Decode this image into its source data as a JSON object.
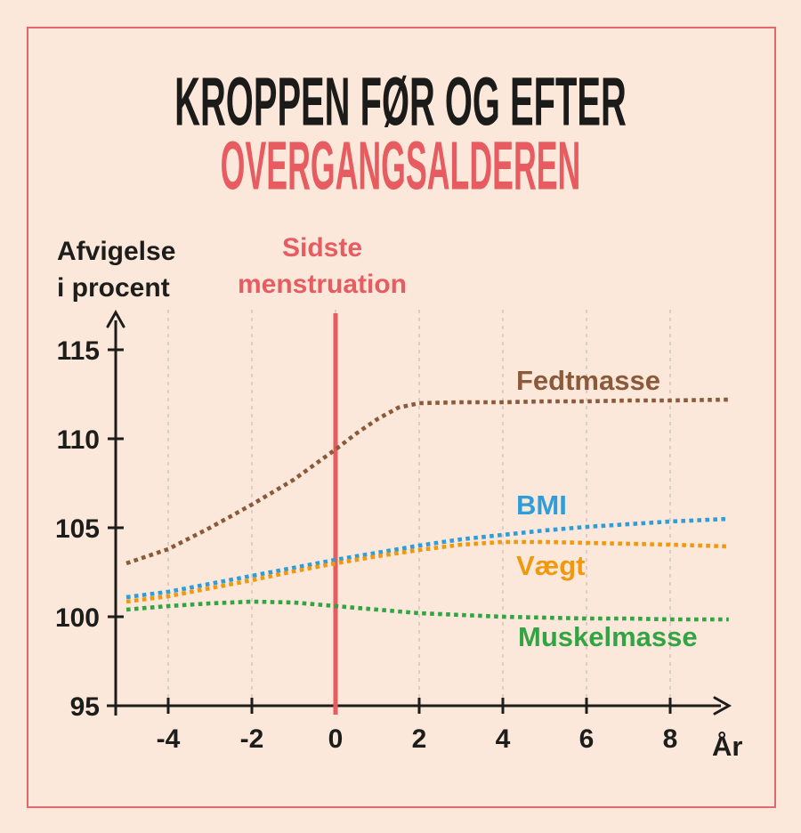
{
  "colors": {
    "background": "#fce8da",
    "frame_border": "#e0686e",
    "accent_red": "#e75c60",
    "text_black": "#1d1d1b",
    "gridline": "#d8cec5",
    "axis": "#1d1d1b"
  },
  "chart_data": {
    "type": "line",
    "title_lines": [
      "KROPPEN FØR OG EFTER",
      "OVERGANGSALDEREN"
    ],
    "ylabel_lines": [
      "Afvigelse",
      "i procent"
    ],
    "xlabel": "År",
    "event_line": {
      "x": 0,
      "label_lines": [
        "Sidste",
        "menstruation"
      ],
      "color": "#e75c60"
    },
    "x_ticks": [
      -4,
      -2,
      0,
      2,
      4,
      6,
      8
    ],
    "y_ticks": [
      95,
      100,
      105,
      110,
      115
    ],
    "x_range": [
      -5,
      9.4
    ],
    "y_range": [
      95,
      117
    ],
    "grid": "vertical-dashed",
    "line_style": "dotted",
    "legend_position": "inline-labels",
    "series": [
      {
        "name": "Fedtmasse",
        "color": "#8a5a3a",
        "points": [
          [
            -5,
            103.0
          ],
          [
            -4,
            103.8
          ],
          [
            -3,
            105.0
          ],
          [
            -2,
            106.3
          ],
          [
            -1,
            107.7
          ],
          [
            0,
            109.4
          ],
          [
            0.5,
            110.3
          ],
          [
            1,
            111.1
          ],
          [
            1.5,
            111.75
          ],
          [
            2,
            112.0
          ],
          [
            3,
            112.05
          ],
          [
            4,
            112.05
          ],
          [
            5,
            112.1
          ],
          [
            6,
            112.1
          ],
          [
            7,
            112.15
          ],
          [
            8,
            112.15
          ],
          [
            9.4,
            112.2
          ]
        ]
      },
      {
        "name": "BMI",
        "color": "#2f9ed8",
        "points": [
          [
            -5,
            101.1
          ],
          [
            -4,
            101.4
          ],
          [
            -3,
            101.85
          ],
          [
            -2,
            102.3
          ],
          [
            -1,
            102.75
          ],
          [
            0,
            103.2
          ],
          [
            1,
            103.6
          ],
          [
            2,
            104.0
          ],
          [
            3,
            104.35
          ],
          [
            4,
            104.6
          ],
          [
            5,
            104.85
          ],
          [
            6,
            105.05
          ],
          [
            7,
            105.2
          ],
          [
            8,
            105.35
          ],
          [
            9.4,
            105.5
          ]
        ]
      },
      {
        "name": "Vægt",
        "color": "#f0990f",
        "points": [
          [
            -5,
            100.85
          ],
          [
            -4,
            101.15
          ],
          [
            -3,
            101.6
          ],
          [
            -2,
            102.05
          ],
          [
            -1,
            102.55
          ],
          [
            0,
            103.0
          ],
          [
            1,
            103.4
          ],
          [
            2,
            103.75
          ],
          [
            3,
            104.05
          ],
          [
            4,
            104.2
          ],
          [
            5,
            104.2
          ],
          [
            6,
            104.15
          ],
          [
            7,
            104.1
          ],
          [
            8,
            104.05
          ],
          [
            9.4,
            103.95
          ]
        ]
      },
      {
        "name": "Muskelmasse",
        "color": "#33a443",
        "points": [
          [
            -5,
            100.4
          ],
          [
            -4,
            100.6
          ],
          [
            -3,
            100.75
          ],
          [
            -2,
            100.85
          ],
          [
            -1,
            100.8
          ],
          [
            0,
            100.6
          ],
          [
            1,
            100.4
          ],
          [
            2,
            100.2
          ],
          [
            3,
            100.1
          ],
          [
            4,
            100.0
          ],
          [
            5,
            99.95
          ],
          [
            6,
            99.9
          ],
          [
            7,
            99.9
          ],
          [
            8,
            99.85
          ],
          [
            9.4,
            99.85
          ]
        ]
      }
    ]
  }
}
